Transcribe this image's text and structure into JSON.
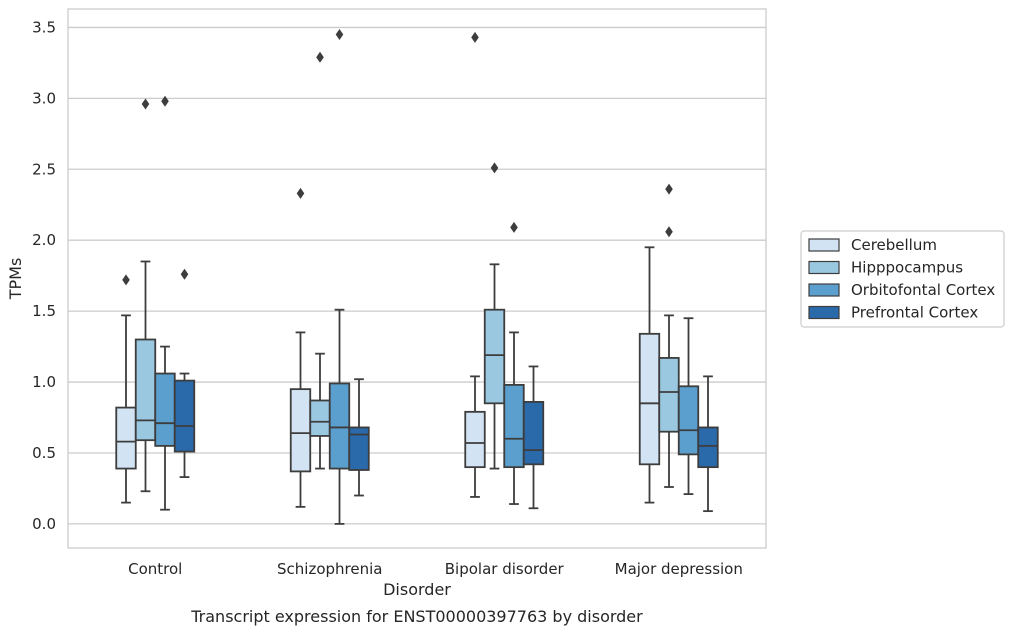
{
  "chart_data": {
    "type": "box",
    "title": "",
    "caption": "Transcript expression for ENST00000397763 by disorder",
    "xlabel": "Disorder",
    "ylabel": "TPMs",
    "ylim": [
      -0.17,
      3.63
    ],
    "yticks": [
      "0.0",
      "0.5",
      "1.0",
      "1.5",
      "2.0",
      "2.5",
      "3.0",
      "3.5"
    ],
    "grid": "horizontal",
    "legend_position": "right",
    "categories": [
      "Control",
      "Schizophrenia",
      "Bipolar disorder",
      "Major depression"
    ],
    "series": [
      {
        "name": "Cerebellum",
        "color": "#d2e3f3",
        "boxes": [
          {
            "whisker_low": 0.15,
            "q1": 0.39,
            "median": 0.58,
            "q3": 0.82,
            "whisker_high": 1.47,
            "outliers": [
              1.72
            ]
          },
          {
            "whisker_low": 0.12,
            "q1": 0.37,
            "median": 0.64,
            "q3": 0.95,
            "whisker_high": 1.35,
            "outliers": [
              2.33
            ]
          },
          {
            "whisker_low": 0.19,
            "q1": 0.4,
            "median": 0.57,
            "q3": 0.79,
            "whisker_high": 1.04,
            "outliers": [
              3.43
            ]
          },
          {
            "whisker_low": 0.15,
            "q1": 0.42,
            "median": 0.85,
            "q3": 1.34,
            "whisker_high": 1.95,
            "outliers": []
          }
        ]
      },
      {
        "name": "Hipppocampus",
        "color": "#9ac8e0",
        "boxes": [
          {
            "whisker_low": 0.23,
            "q1": 0.59,
            "median": 0.73,
            "q3": 1.3,
            "whisker_high": 1.85,
            "outliers": [
              2.96
            ]
          },
          {
            "whisker_low": 0.39,
            "q1": 0.62,
            "median": 0.72,
            "q3": 0.87,
            "whisker_high": 1.2,
            "outliers": [
              3.29
            ]
          },
          {
            "whisker_low": 0.39,
            "q1": 0.85,
            "median": 1.19,
            "q3": 1.51,
            "whisker_high": 1.83,
            "outliers": [
              2.51
            ]
          },
          {
            "whisker_low": 0.26,
            "q1": 0.65,
            "median": 0.93,
            "q3": 1.17,
            "whisker_high": 1.47,
            "outliers": [
              2.06,
              2.36
            ]
          }
        ]
      },
      {
        "name": "Orbitofontal Cortex",
        "color": "#5a9fcd",
        "boxes": [
          {
            "whisker_low": 0.1,
            "q1": 0.55,
            "median": 0.71,
            "q3": 1.06,
            "whisker_high": 1.25,
            "outliers": [
              2.98
            ]
          },
          {
            "whisker_low": 0.0,
            "q1": 0.39,
            "median": 0.68,
            "q3": 0.99,
            "whisker_high": 1.51,
            "outliers": [
              3.45
            ]
          },
          {
            "whisker_low": 0.14,
            "q1": 0.4,
            "median": 0.6,
            "q3": 0.98,
            "whisker_high": 1.35,
            "outliers": [
              2.09
            ]
          },
          {
            "whisker_low": 0.21,
            "q1": 0.49,
            "median": 0.66,
            "q3": 0.97,
            "whisker_high": 1.45,
            "outliers": []
          }
        ]
      },
      {
        "name": "Prefrontal Cortex",
        "color": "#2a6aab",
        "boxes": [
          {
            "whisker_low": 0.33,
            "q1": 0.51,
            "median": 0.69,
            "q3": 1.01,
            "whisker_high": 1.06,
            "outliers": [
              1.76
            ]
          },
          {
            "whisker_low": 0.2,
            "q1": 0.38,
            "median": 0.63,
            "q3": 0.68,
            "whisker_high": 1.02,
            "outliers": []
          },
          {
            "whisker_low": 0.11,
            "q1": 0.42,
            "median": 0.52,
            "q3": 0.86,
            "whisker_high": 1.11,
            "outliers": []
          },
          {
            "whisker_low": 0.09,
            "q1": 0.4,
            "median": 0.55,
            "q3": 0.68,
            "whisker_high": 1.04,
            "outliers": []
          }
        ]
      }
    ]
  }
}
